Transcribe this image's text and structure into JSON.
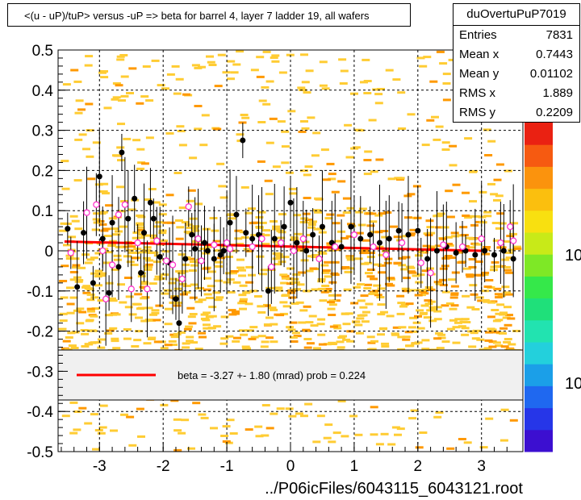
{
  "title": "<(u - uP)/tuP> versus  -uP => beta for barrel 4, layer 7 ladder 19, all wafers",
  "stats": {
    "name": "duOvertuPuP7019",
    "rows": [
      {
        "label": "Entries",
        "value": "7831"
      },
      {
        "label": "Mean x",
        "value": "0.7443"
      },
      {
        "label": "Mean y",
        "value": "0.01102"
      },
      {
        "label": "RMS x",
        "value": "1.889"
      },
      {
        "label": "RMS y",
        "value": "0.2209"
      }
    ]
  },
  "legend_text": "beta =   -3.27 +-  1.80 (mrad) prob = 0.224",
  "xlabel": "../P06icFiles/6043115_6043121.root",
  "palette_ticks": [
    "10",
    "10"
  ],
  "colors": {
    "fit": "#ff0000",
    "points_black": "#000000",
    "points_pink": "#ff33cc",
    "heat_low": "#ffcc33",
    "heat_high": "#ff9900"
  },
  "chart_data": {
    "type": "scatter",
    "xlim": [
      -3.65,
      3.65
    ],
    "ylim": [
      -0.5,
      0.5
    ],
    "x_ticks": [
      -3,
      -2,
      -1,
      0,
      1,
      2,
      3
    ],
    "y_ticks": [
      -0.5,
      -0.4,
      -0.3,
      -0.2,
      -0.1,
      0,
      0.1,
      0.2,
      0.3,
      0.4,
      0.5
    ],
    "x_tick_labels": [
      "-3",
      "-2",
      "-1",
      "0",
      "1",
      "2",
      "3"
    ],
    "y_tick_labels": [
      "-0.5",
      "-0.4",
      "-0.3",
      "-0.2",
      "-0.1",
      "0",
      "0.1",
      "0.2",
      "0.3",
      "0.4",
      "0.5"
    ],
    "grid": true,
    "fit_line": {
      "x": [
        -3.55,
        3.0
      ],
      "y": [
        0.023,
        0.0
      ]
    },
    "series": [
      {
        "marker": "filled-circle",
        "points": [
          {
            "x": -3.5,
            "y": 0.055
          },
          {
            "x": -3.35,
            "y": -0.09
          },
          {
            "x": -3.25,
            "y": 0.045
          },
          {
            "x": -3.1,
            "y": -0.08
          },
          {
            "x": -3.0,
            "y": 0.185
          },
          {
            "x": -2.95,
            "y": 0.03
          },
          {
            "x": -2.85,
            "y": -0.105
          },
          {
            "x": -2.8,
            "y": 0.07
          },
          {
            "x": -2.7,
            "y": -0.04
          },
          {
            "x": -2.65,
            "y": 0.245
          },
          {
            "x": -2.55,
            "y": 0.08
          },
          {
            "x": -2.45,
            "y": 0.13
          },
          {
            "x": -2.35,
            "y": -0.055
          },
          {
            "x": -2.3,
            "y": 0.045
          },
          {
            "x": -2.2,
            "y": 0.12
          },
          {
            "x": -2.15,
            "y": 0.08
          },
          {
            "x": -2.05,
            "y": -0.015
          },
          {
            "x": -1.9,
            "y": -0.03
          },
          {
            "x": -1.8,
            "y": -0.12
          },
          {
            "x": -1.75,
            "y": -0.18
          },
          {
            "x": -1.65,
            "y": -0.02
          },
          {
            "x": -1.55,
            "y": 0.04
          },
          {
            "x": -1.5,
            "y": 0.005
          },
          {
            "x": -1.35,
            "y": 0.02
          },
          {
            "x": -1.3,
            "y": 0.0
          },
          {
            "x": -1.2,
            "y": -0.02
          },
          {
            "x": -1.1,
            "y": -0.01
          },
          {
            "x": -1.05,
            "y": 0.0
          },
          {
            "x": -0.95,
            "y": 0.07
          },
          {
            "x": -0.85,
            "y": 0.09
          },
          {
            "x": -0.7,
            "y": 0.045
          },
          {
            "x": -0.6,
            "y": 0.03
          },
          {
            "x": -0.5,
            "y": 0.04
          },
          {
            "x": -0.35,
            "y": -0.1
          },
          {
            "x": -0.25,
            "y": 0.03
          },
          {
            "x": -0.1,
            "y": 0.06
          },
          {
            "x": 0.0,
            "y": 0.12
          },
          {
            "x": 0.1,
            "y": 0.02
          },
          {
            "x": 0.25,
            "y": 0.0
          },
          {
            "x": 0.35,
            "y": 0.04
          },
          {
            "x": 0.5,
            "y": 0.06
          },
          {
            "x": 0.65,
            "y": 0.02
          },
          {
            "x": 0.8,
            "y": 0.01
          },
          {
            "x": 0.95,
            "y": 0.06
          },
          {
            "x": 1.1,
            "y": 0.03
          },
          {
            "x": 1.25,
            "y": 0.04
          },
          {
            "x": 1.4,
            "y": 0.02
          },
          {
            "x": 1.55,
            "y": 0.03
          },
          {
            "x": 1.7,
            "y": 0.05
          },
          {
            "x": 1.85,
            "y": 0.04
          },
          {
            "x": 2.0,
            "y": 0.05
          },
          {
            "x": 2.15,
            "y": -0.02
          },
          {
            "x": 2.3,
            "y": 0.0
          },
          {
            "x": 2.45,
            "y": 0.01
          },
          {
            "x": 2.6,
            "y": -0.005
          },
          {
            "x": 2.75,
            "y": 0.0
          },
          {
            "x": 2.9,
            "y": -0.01
          },
          {
            "x": 3.05,
            "y": 0.0
          },
          {
            "x": 3.2,
            "y": -0.01
          },
          {
            "x": 3.35,
            "y": 0.0
          },
          {
            "x": 3.5,
            "y": -0.02
          },
          {
            "x": -0.75,
            "y": 0.275
          }
        ]
      },
      {
        "marker": "open-circle",
        "points": [
          {
            "x": -3.45,
            "y": -0.005
          },
          {
            "x": -3.2,
            "y": 0.095
          },
          {
            "x": -3.05,
            "y": 0.115
          },
          {
            "x": -2.95,
            "y": 0.0
          },
          {
            "x": -2.9,
            "y": -0.12
          },
          {
            "x": -2.8,
            "y": -0.035
          },
          {
            "x": -2.7,
            "y": 0.09
          },
          {
            "x": -2.6,
            "y": 0.115
          },
          {
            "x": -2.5,
            "y": -0.095
          },
          {
            "x": -2.4,
            "y": 0.02
          },
          {
            "x": -2.25,
            "y": -0.095
          },
          {
            "x": -2.1,
            "y": 0.025
          },
          {
            "x": -1.95,
            "y": -0.025
          },
          {
            "x": -1.85,
            "y": -0.035
          },
          {
            "x": -1.7,
            "y": -0.07
          },
          {
            "x": -1.6,
            "y": 0.11
          },
          {
            "x": -1.45,
            "y": 0.03
          },
          {
            "x": -1.4,
            "y": -0.025
          },
          {
            "x": -1.2,
            "y": 0.015
          },
          {
            "x": -1.0,
            "y": 0.02
          },
          {
            "x": -0.95,
            "y": 0.005
          },
          {
            "x": -0.6,
            "y": 0.01
          },
          {
            "x": -0.45,
            "y": 0.03
          },
          {
            "x": -0.3,
            "y": -0.04
          },
          {
            "x": -0.15,
            "y": 0.02
          },
          {
            "x": 0.05,
            "y": 0.0
          },
          {
            "x": 0.2,
            "y": 0.03
          },
          {
            "x": 0.45,
            "y": -0.02
          },
          {
            "x": 0.7,
            "y": 0.01
          },
          {
            "x": 1.0,
            "y": 0.04
          },
          {
            "x": 1.3,
            "y": 0.01
          },
          {
            "x": 1.5,
            "y": -0.01
          },
          {
            "x": 1.75,
            "y": 0.02
          },
          {
            "x": 2.05,
            "y": -0.03
          },
          {
            "x": 2.2,
            "y": -0.055
          },
          {
            "x": 2.4,
            "y": 0.015
          },
          {
            "x": 2.7,
            "y": 0.01
          },
          {
            "x": 3.0,
            "y": 0.03
          },
          {
            "x": 3.3,
            "y": 0.02
          },
          {
            "x": 3.45,
            "y": 0.06
          },
          {
            "x": 3.5,
            "y": 0.025
          }
        ]
      }
    ]
  }
}
